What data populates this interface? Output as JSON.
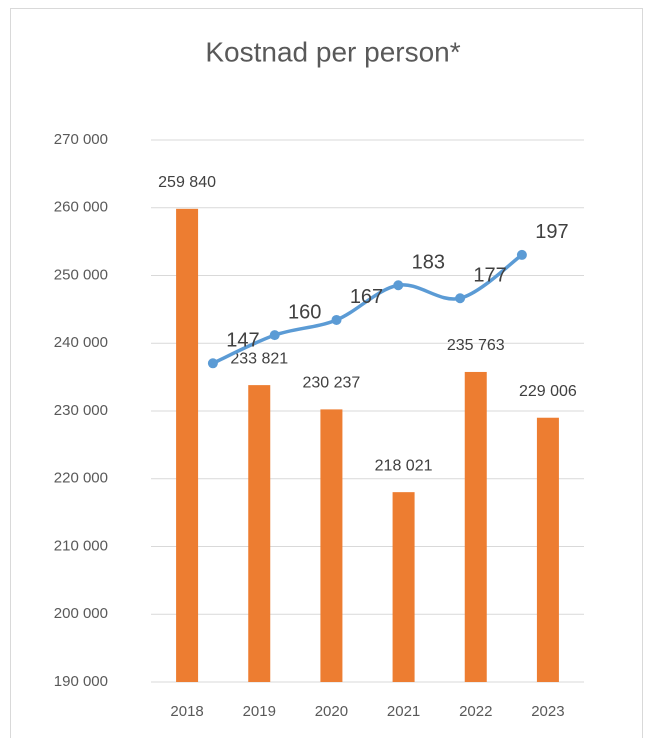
{
  "chart_data": {
    "type": "bar",
    "title": "Kostnad per person*",
    "categories": [
      "2018",
      "2019",
      "2020",
      "2021",
      "2022",
      "2023"
    ],
    "series": [
      {
        "type": "bar",
        "color": "#ed7d31",
        "values": [
          259840,
          233821,
          230237,
          218021,
          235763,
          229006
        ],
        "value_labels": [
          "259 840",
          "233 821",
          "230 237",
          "218 021",
          "235 763",
          "229 006"
        ]
      },
      {
        "type": "line",
        "axis": "y2",
        "color": "#5b9bd5",
        "smooth": true,
        "values": [
          147,
          160,
          167,
          183,
          177,
          197
        ]
      }
    ],
    "ylim": [
      190000,
      270000
    ],
    "yticks": [
      {
        "value": 190000,
        "label": "190 000"
      },
      {
        "value": 200000,
        "label": "200 000"
      },
      {
        "value": 210000,
        "label": "210 000"
      },
      {
        "value": 220000,
        "label": "220 000"
      },
      {
        "value": 230000,
        "label": "230 000"
      },
      {
        "value": 240000,
        "label": "240 000"
      },
      {
        "value": 250000,
        "label": "250 000"
      },
      {
        "value": 260000,
        "label": "260 000"
      },
      {
        "value": 270000,
        "label": "270 000"
      }
    ],
    "y2lim": [
      0,
      250
    ],
    "grid": true
  }
}
